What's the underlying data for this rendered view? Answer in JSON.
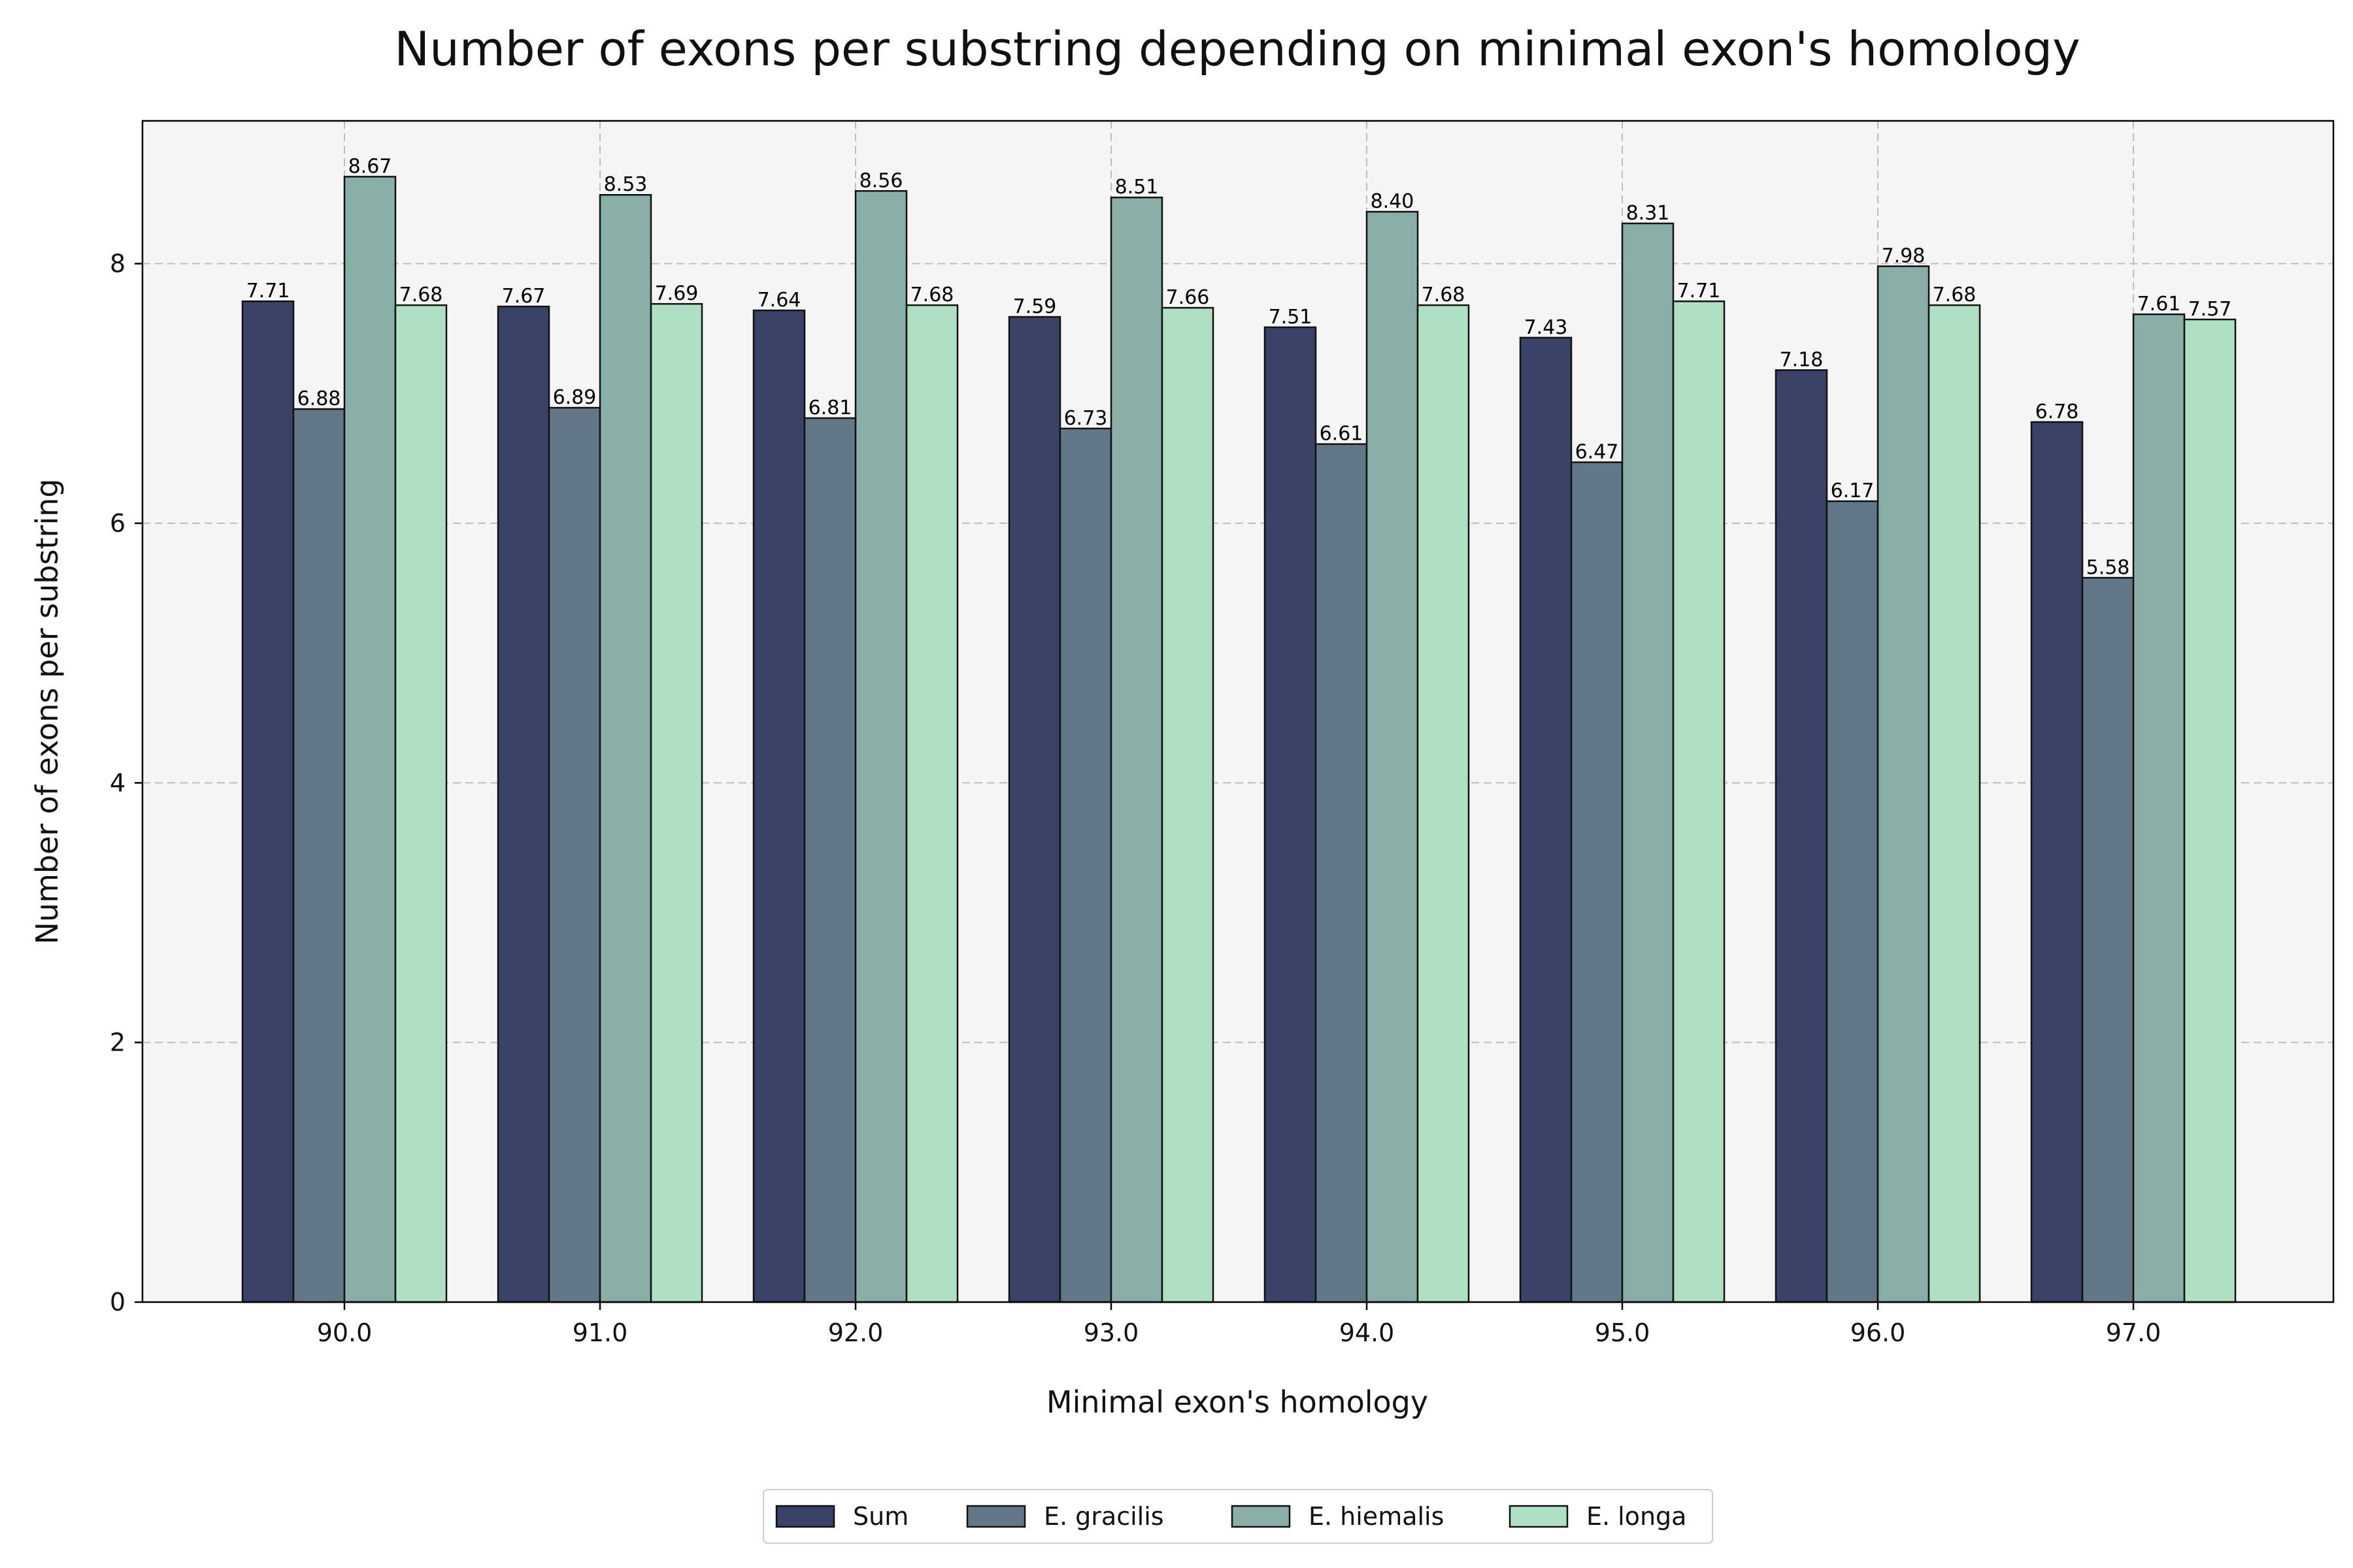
{
  "chart_data": {
    "type": "bar",
    "title": "Number of exons per substring depending on minimal exon's homology",
    "xlabel": "Minimal exon's homology",
    "ylabel": "Number of exons per substring",
    "categories": [
      "90.0",
      "91.0",
      "92.0",
      "93.0",
      "94.0",
      "95.0",
      "96.0",
      "97.0"
    ],
    "ylim": [
      0,
      9.1
    ],
    "yticks": [
      0,
      2,
      4,
      6,
      8
    ],
    "ytick_labels": [
      "0",
      "2",
      "4",
      "6",
      "8"
    ],
    "grid": true,
    "legend_position": "bottom-center",
    "series": [
      {
        "name": "Sum",
        "color": "#3a4268",
        "values": [
          7.71,
          7.67,
          7.64,
          7.59,
          7.51,
          7.43,
          7.18,
          6.78
        ],
        "labels": [
          "7.71",
          "7.67",
          "7.64",
          "7.59",
          "7.51",
          "7.43",
          "7.18",
          "6.78"
        ]
      },
      {
        "name": "E. gracilis",
        "color": "#627888",
        "values": [
          6.88,
          6.89,
          6.81,
          6.73,
          6.61,
          6.47,
          6.17,
          5.58
        ],
        "labels": [
          "6.88",
          "6.89",
          "6.81",
          "6.73",
          "6.61",
          "6.47",
          "6.17",
          "5.58"
        ]
      },
      {
        "name": "E. hiemalis",
        "color": "#89ada7",
        "values": [
          8.67,
          8.53,
          8.56,
          8.51,
          8.4,
          8.31,
          7.98,
          7.61
        ],
        "labels": [
          "8.67",
          "8.53",
          "8.56",
          "8.51",
          "8.40",
          "8.31",
          "7.98",
          "7.61"
        ]
      },
      {
        "name": "E. longa",
        "color": "#b0e0c4",
        "values": [
          7.68,
          7.69,
          7.68,
          7.66,
          7.68,
          7.71,
          7.68,
          7.57
        ],
        "labels": [
          "7.68",
          "7.69",
          "7.68",
          "7.66",
          "7.68",
          "7.71",
          "7.68",
          "7.57"
        ]
      }
    ]
  }
}
